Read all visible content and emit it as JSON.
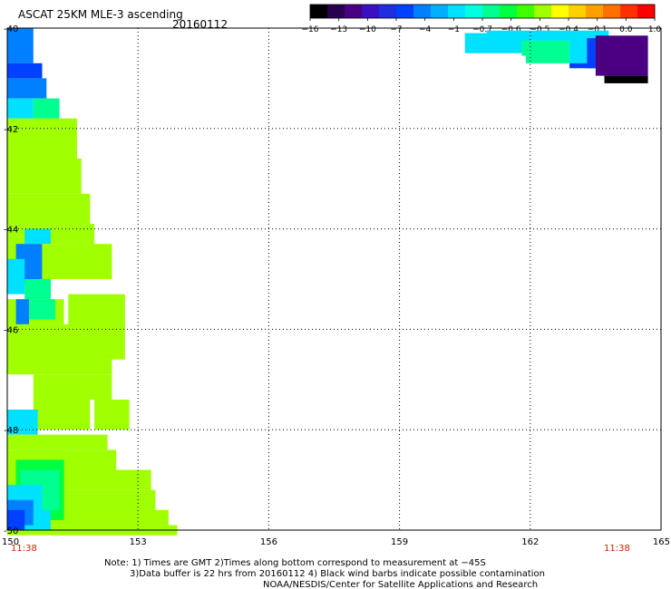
{
  "chart_data": {
    "type": "heatmap",
    "title": "ASCAT 25KM MLE-3 ascending",
    "date": "20160112",
    "colorbar": {
      "tick_labels": [
        "-16",
        "-13",
        "-10",
        "-7",
        "-4",
        "-1",
        "-0.7",
        "-0.6",
        "-0.5",
        "-0.4",
        "-0.1",
        "0.0",
        "1.0"
      ],
      "colors": [
        "#000000",
        "#2a0050",
        "#4b0082",
        "#3a10c0",
        "#1f2fe0",
        "#0040ff",
        "#0080ff",
        "#00b0ff",
        "#00e0ff",
        "#00ffe0",
        "#00ff90",
        "#00ff40",
        "#40ff00",
        "#a0ff00",
        "#ffff00",
        "#ffd000",
        "#ffa000",
        "#ff7000",
        "#ff3000",
        "#ff0000"
      ]
    },
    "x_axis": {
      "ticks": [
        150,
        153,
        156,
        159,
        162,
        165
      ],
      "range": [
        150,
        165
      ]
    },
    "y_axis": {
      "ticks": [
        -40,
        -42,
        -44,
        -46,
        -48,
        -50
      ],
      "range": [
        -50,
        -40
      ]
    },
    "time_labels": [
      "11:38",
      "11:38"
    ],
    "time_color": "#cc2200",
    "grid": true,
    "swaths": [
      {
        "name": "east-swath",
        "cells": [
          {
            "lon0": 161.0,
            "lon1": 163.8,
            "lat0": -40.05,
            "lat1": -40.25,
            "value": -1
          },
          {
            "lon0": 160.5,
            "lon1": 162.0,
            "lat0": -40.1,
            "lat1": -40.5,
            "value": -1
          },
          {
            "lon0": 161.8,
            "lon1": 162.9,
            "lat0": -40.25,
            "lat1": -40.55,
            "value": -0.7
          },
          {
            "lon0": 161.9,
            "lon1": 162.9,
            "lat0": -40.55,
            "lat1": -40.7,
            "value": -0.7
          },
          {
            "lon0": 162.9,
            "lon1": 163.3,
            "lat0": -40.2,
            "lat1": -40.7,
            "value": -1
          },
          {
            "lon0": 163.3,
            "lon1": 163.8,
            "lat0": -40.2,
            "lat1": -40.8,
            "value": -7
          },
          {
            "lon0": 162.9,
            "lon1": 163.8,
            "lat0": -40.7,
            "lat1": -40.8,
            "value": -7
          },
          {
            "lon0": 163.5,
            "lon1": 164.7,
            "lat0": -40.15,
            "lat1": -40.95,
            "value": -13
          },
          {
            "lon0": 163.7,
            "lon1": 164.7,
            "lat0": -40.95,
            "lat1": -41.1,
            "value": -16
          }
        ]
      },
      {
        "name": "west-swath",
        "cells": [
          {
            "lon0": 150.0,
            "lon1": 150.6,
            "lat0": -40.0,
            "lat1": -40.7,
            "value": -4
          },
          {
            "lon0": 150.0,
            "lon1": 150.8,
            "lat0": -40.7,
            "lat1": -41.0,
            "value": -7
          },
          {
            "lon0": 150.0,
            "lon1": 150.9,
            "lat0": -41.0,
            "lat1": -41.4,
            "value": -4
          },
          {
            "lon0": 150.0,
            "lon1": 150.6,
            "lat0": -41.4,
            "lat1": -41.8,
            "value": -1
          },
          {
            "lon0": 150.6,
            "lon1": 151.2,
            "lat0": -41.4,
            "lat1": -41.8,
            "value": -0.7
          },
          {
            "lon0": 150.0,
            "lon1": 151.6,
            "lat0": -41.8,
            "lat1": -42.6,
            "value": -0.5
          },
          {
            "lon0": 150.0,
            "lon1": 151.7,
            "lat0": -42.6,
            "lat1": -43.3,
            "value": -0.5
          },
          {
            "lon0": 150.0,
            "lon1": 151.9,
            "lat0": -43.3,
            "lat1": -43.9,
            "value": -0.5
          },
          {
            "lon0": 150.0,
            "lon1": 152.0,
            "lat0": -43.9,
            "lat1": -44.3,
            "value": -0.5
          },
          {
            "lon0": 150.4,
            "lon1": 151.0,
            "lat0": -44.0,
            "lat1": -44.3,
            "value": -1
          },
          {
            "lon0": 150.0,
            "lon1": 152.4,
            "lat0": -44.3,
            "lat1": -45.0,
            "value": -0.5
          },
          {
            "lon0": 150.2,
            "lon1": 150.8,
            "lat0": -44.3,
            "lat1": -45.1,
            "value": -4
          },
          {
            "lon0": 150.0,
            "lon1": 150.4,
            "lat0": -44.6,
            "lat1": -45.3,
            "value": -1
          },
          {
            "lon0": 150.4,
            "lon1": 151.0,
            "lat0": -45.0,
            "lat1": -45.4,
            "value": -0.7
          },
          {
            "lon0": 150.0,
            "lon1": 151.3,
            "lat0": -45.4,
            "lat1": -45.9,
            "value": -0.5
          },
          {
            "lon0": 150.2,
            "lon1": 150.5,
            "lat0": -45.4,
            "lat1": -45.9,
            "value": -4
          },
          {
            "lon0": 150.5,
            "lon1": 151.1,
            "lat0": -45.4,
            "lat1": -45.8,
            "value": -0.7
          },
          {
            "lon0": 151.4,
            "lon1": 152.7,
            "lat0": -45.3,
            "lat1": -46.1,
            "value": -0.5
          },
          {
            "lon0": 150.0,
            "lon1": 152.7,
            "lat0": -45.9,
            "lat1": -46.6,
            "value": -0.5
          },
          {
            "lon0": 150.0,
            "lon1": 152.4,
            "lat0": -46.6,
            "lat1": -46.9,
            "value": -0.5
          },
          {
            "lon0": 150.6,
            "lon1": 152.4,
            "lat0": -46.9,
            "lat1": -47.4,
            "value": -0.5
          },
          {
            "lon0": 150.6,
            "lon1": 151.9,
            "lat0": -47.4,
            "lat1": -48.0,
            "value": -0.5
          },
          {
            "lon0": 152.0,
            "lon1": 152.8,
            "lat0": -47.4,
            "lat1": -48.0,
            "value": -0.5
          },
          {
            "lon0": 150.0,
            "lon1": 150.7,
            "lat0": -47.6,
            "lat1": -48.1,
            "value": -1
          },
          {
            "lon0": 150.0,
            "lon1": 152.3,
            "lat0": -48.1,
            "lat1": -48.4,
            "value": -0.5
          },
          {
            "lon0": 150.0,
            "lon1": 152.5,
            "lat0": -48.4,
            "lat1": -48.8,
            "value": -0.5
          },
          {
            "lon0": 150.0,
            "lon1": 153.3,
            "lat0": -48.8,
            "lat1": -49.2,
            "value": -0.5
          },
          {
            "lon0": 150.0,
            "lon1": 153.4,
            "lat0": -49.2,
            "lat1": -49.6,
            "value": -0.5
          },
          {
            "lon0": 150.0,
            "lon1": 153.7,
            "lat0": -49.6,
            "lat1": -49.9,
            "value": -0.5
          },
          {
            "lon0": 150.0,
            "lon1": 153.9,
            "lat0": -49.9,
            "lat1": -50.1,
            "value": -0.5
          },
          {
            "lon0": 150.2,
            "lon1": 151.3,
            "lat0": -48.6,
            "lat1": -49.8,
            "value": -0.6
          },
          {
            "lon0": 150.3,
            "lon1": 151.2,
            "lat0": -48.8,
            "lat1": -49.6,
            "value": -0.7
          },
          {
            "lon0": 150.0,
            "lon1": 150.8,
            "lat0": -49.1,
            "lat1": -50.0,
            "value": -1
          },
          {
            "lon0": 150.0,
            "lon1": 150.6,
            "lat0": -49.4,
            "lat1": -49.9,
            "value": -4
          },
          {
            "lon0": 150.0,
            "lon1": 150.4,
            "lat0": -49.6,
            "lat1": -50.0,
            "value": -7
          },
          {
            "lon0": 150.6,
            "lon1": 151.0,
            "lat0": -49.6,
            "lat1": -50.0,
            "value": -1
          }
        ]
      }
    ]
  },
  "notes": {
    "line1": "Note: 1) Times are GMT 2)Times along bottom correspond to measurement at −45S",
    "line2": "3)Data buffer is 22 hrs from 20160112 4) Black wind barbs indicate possible contamination",
    "line3": "NOAA/NESDIS/Center for Satellite Applications and Research"
  }
}
